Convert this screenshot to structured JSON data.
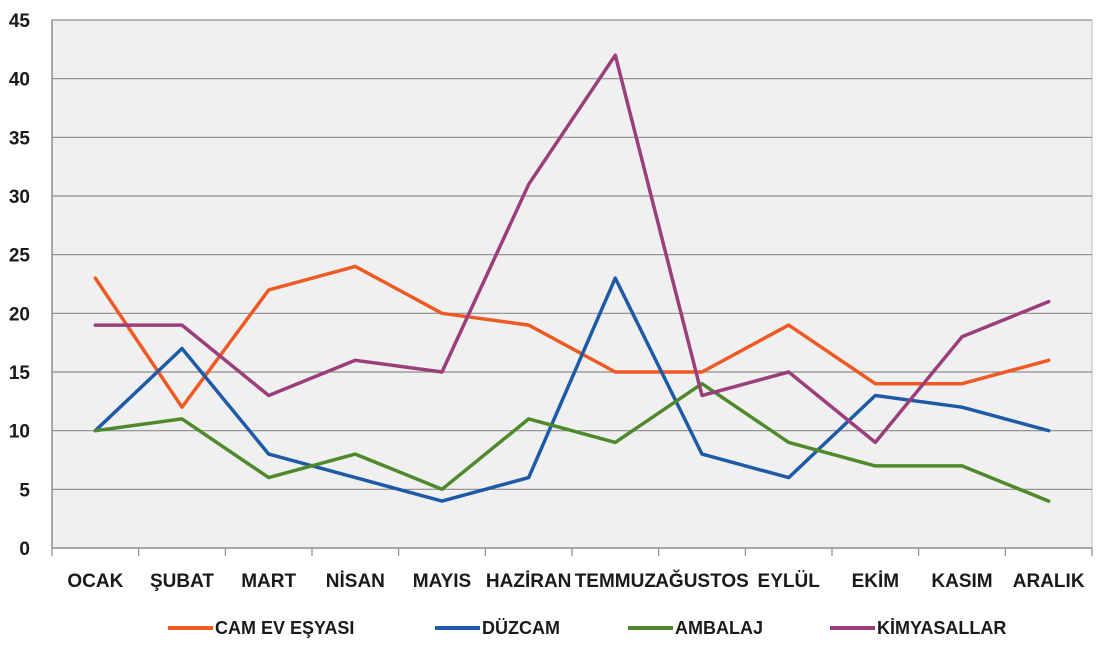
{
  "chart_data": {
    "type": "line",
    "categories": [
      "OCAK",
      "ŞUBAT",
      "MART",
      "NİSAN",
      "MAYIS",
      "HAZİRAN",
      "TEMMUZ",
      "AĞUSTOS",
      "EYLÜL",
      "EKİM",
      "KASIM",
      "ARALIK"
    ],
    "series": [
      {
        "name": "CAM EV EŞYASI",
        "color": "#ee5a24",
        "values": [
          23,
          12,
          22,
          24,
          20,
          19,
          15,
          15,
          19,
          14,
          14,
          16
        ]
      },
      {
        "name": "DÜZCAM",
        "color": "#1f5aa6",
        "values": [
          10,
          17,
          8,
          6,
          4,
          6,
          23,
          8,
          6,
          13,
          12,
          10
        ]
      },
      {
        "name": "AMBALAJ",
        "color": "#4e8a2c",
        "values": [
          10,
          11,
          6,
          8,
          5,
          11,
          9,
          14,
          9,
          7,
          7,
          4
        ]
      },
      {
        "name": "KİMYASALLAR",
        "color": "#9b3f7a",
        "values": [
          19,
          19,
          13,
          16,
          15,
          31,
          42,
          13,
          15,
          9,
          18,
          21
        ]
      }
    ],
    "ylim": [
      0,
      45
    ],
    "yticks": [
      0,
      5,
      10,
      15,
      20,
      25,
      30,
      35,
      40,
      45
    ],
    "grid": true,
    "legend_position": "bottom",
    "plot_background": "#f0f0f0"
  }
}
